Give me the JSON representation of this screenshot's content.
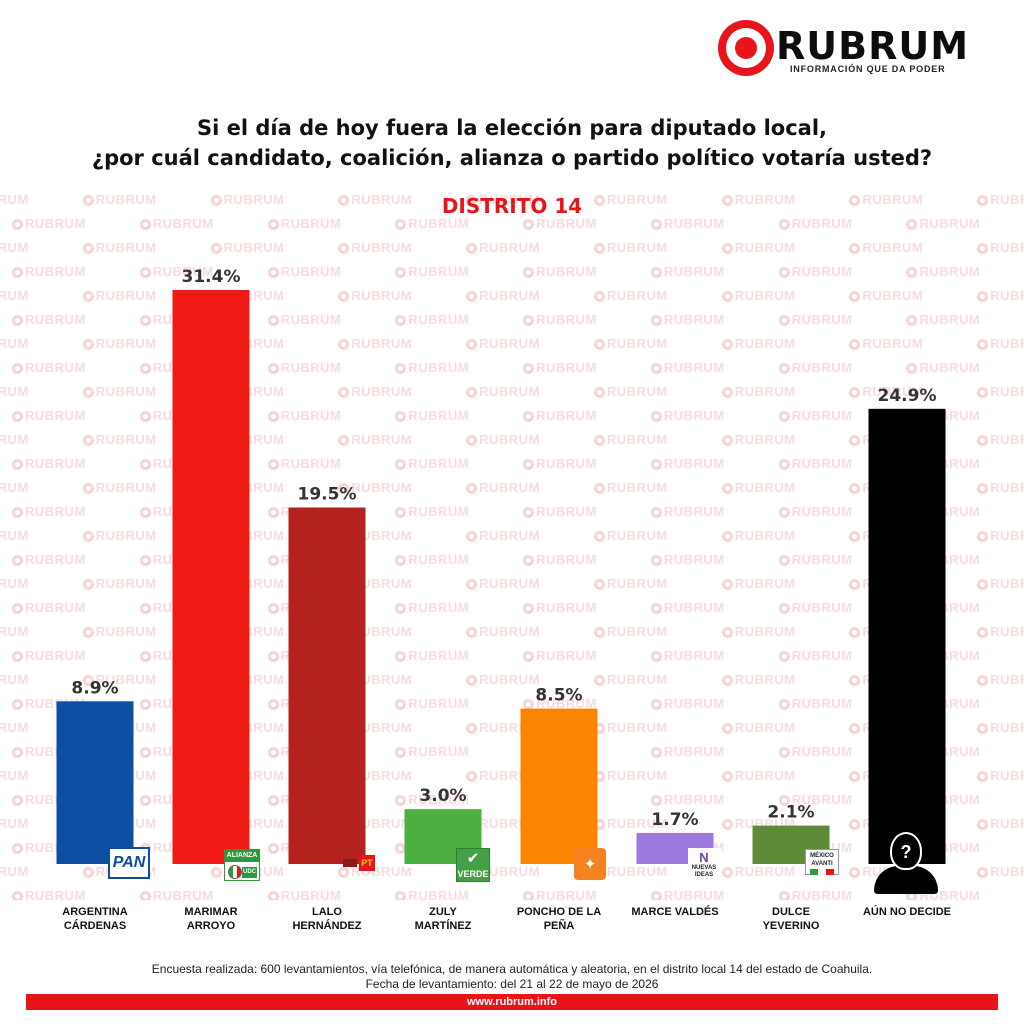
{
  "brand": {
    "name": "RUBRUM",
    "tagline": "INFORMACIÓN QUE DA PODER",
    "watermark_text": "RUBRUM",
    "accent_color": "#e8141a"
  },
  "header": {
    "title_line1": "Si el día de hoy fuera la elección para diputado local,",
    "title_line2": "¿por cuál candidato, coalición, alianza o partido político votaría usted?",
    "district": "DISTRITO 14"
  },
  "chart_data": {
    "type": "bar",
    "title": "Si el día de hoy fuera la elección para diputado local, ¿por cuál candidato, coalición, alianza o partido político votaría usted?",
    "subtitle": "DISTRITO 14",
    "xlabel": "",
    "ylabel": "",
    "ylim": [
      0,
      35
    ],
    "grid": false,
    "legend": "none",
    "categories": [
      [
        "ARGENTINA",
        "CÁRDENAS"
      ],
      [
        "MARIMAR",
        "ARROYO"
      ],
      [
        "LALO",
        "HERNÁNDEZ"
      ],
      [
        "ZULY",
        "MARTÍNEZ"
      ],
      [
        "PONCHO DE LA",
        "PEÑA"
      ],
      [
        "MARCE VALDÉS"
      ],
      [
        "DULCE",
        "YEVERINO"
      ],
      [
        "AÚN NO DECIDE"
      ]
    ],
    "values": [
      8.9,
      31.4,
      19.5,
      3.0,
      8.5,
      1.7,
      2.1,
      24.9
    ],
    "value_labels": [
      "8.9%",
      "31.4%",
      "19.5%",
      "3.0%",
      "8.5%",
      "1.7%",
      "2.1%",
      "24.9%"
    ],
    "colors": [
      "#0b4ea2",
      "#ef1b14",
      "#b3221e",
      "#4caf3f",
      "#fb8500",
      "#9b79dd",
      "#5e8a3a",
      "#000000"
    ],
    "party_logos": [
      "pan-logo",
      "alianza-pri-udc-logo",
      "pt-logo",
      "verde-logo",
      "movimiento-ciudadano-logo",
      "nuevas-ideas-logo",
      "mexico-avanti-logo",
      "undecided-silhouette-icon"
    ]
  },
  "logo_text": {
    "pan": "PAN",
    "alianza": "ALIANZA",
    "udc": "UDC",
    "pt": "PT",
    "verde": "VERDE",
    "nuevas_ideas": "NUEVAS IDEAS",
    "mexico_avanti": "MÉXICO AVANTI",
    "undecided_mark": "?"
  },
  "footer": {
    "note_line1": "Encuesta realizada: 600 levantamientos, vía telefónica, de manera automática y aleatoria, en el distrito local 14 del estado de Coahuila.",
    "note_line2": "Fecha de levantamiento: del 21 al 22 de mayo de 2026",
    "url": "www.rubrum.info"
  }
}
